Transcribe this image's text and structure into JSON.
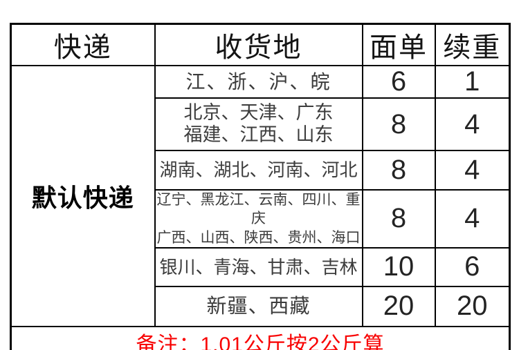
{
  "table": {
    "headers": {
      "carrier": "快递",
      "destination": "收货地",
      "base_fee": "面单",
      "extra_weight_fee": "续重"
    },
    "carrier_name": "默认快递",
    "rows": [
      {
        "region_lines": [
          "江、浙、沪、皖"
        ],
        "base_fee": "6",
        "extra_fee": "1"
      },
      {
        "region_lines": [
          "北京、天津、广东",
          "福建、江西、山东"
        ],
        "base_fee": "8",
        "extra_fee": "4"
      },
      {
        "region_lines": [
          "湖南、湖北、河南、河北"
        ],
        "base_fee": "8",
        "extra_fee": "4"
      },
      {
        "region_lines": [
          "辽宁、黑龙江、云南、四川、重庆",
          "广西、山西、陕西、贵州、海口"
        ],
        "base_fee": "8",
        "extra_fee": "4"
      },
      {
        "region_lines": [
          "银川、青海、甘肃、吉林"
        ],
        "base_fee": "10",
        "extra_fee": "6"
      },
      {
        "region_lines": [
          "新疆、西藏"
        ],
        "base_fee": "20",
        "extra_fee": "20"
      }
    ],
    "note": "备注：1.01公斤按2公斤算"
  },
  "colors": {
    "note_red": "#f80000",
    "border_black": "#000000",
    "background": "#ffffff"
  }
}
